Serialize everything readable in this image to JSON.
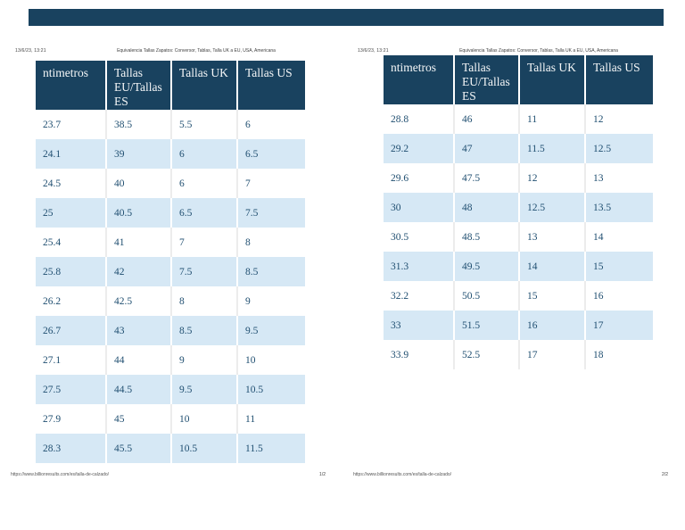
{
  "ui": {
    "top_bar_color": "#19425f",
    "accent_color": "#19425f",
    "stripe_color": "#d6e8f5",
    "body_text_color": "#1f4e70"
  },
  "pages": [
    {
      "datetime": "13/6/23, 13:21",
      "doc_title": "Equivalencia Tallas Zapatos: Conversor, Tablas, Talla UK a EU, USA, Americana",
      "footer_url": "https://www.billionresults.com/es/talla-de-calzado/",
      "page_number": "1/2",
      "table": {
        "headers": [
          "ntimetros",
          "Tallas\nEU/Tallas\nES",
          "Tallas UK",
          "Tallas US"
        ],
        "rows": [
          [
            "23.7",
            "38.5",
            "5.5",
            "6"
          ],
          [
            "24.1",
            "39",
            "6",
            "6.5"
          ],
          [
            "24.5",
            "40",
            "6",
            "7"
          ],
          [
            "25",
            "40.5",
            "6.5",
            "7.5"
          ],
          [
            "25.4",
            "41",
            "7",
            "8"
          ],
          [
            "25.8",
            "42",
            "7.5",
            "8.5"
          ],
          [
            "26.2",
            "42.5",
            "8",
            "9"
          ],
          [
            "26.7",
            "43",
            "8.5",
            "9.5"
          ],
          [
            "27.1",
            "44",
            "9",
            "10"
          ],
          [
            "27.5",
            "44.5",
            "9.5",
            "10.5"
          ],
          [
            "27.9",
            "45",
            "10",
            "11"
          ],
          [
            "28.3",
            "45.5",
            "10.5",
            "11.5"
          ]
        ]
      }
    },
    {
      "datetime": "13/6/23, 13:21",
      "doc_title": "Equivalencia Tallas Zapatos: Conversor, Tablas, Talla UK a EU, USA, Americana",
      "footer_url": "https://www.billionresults.com/es/talla-de-calzado/",
      "page_number": "2/2",
      "table": {
        "headers": [
          "ntimetros",
          "Tallas\nEU/Tallas\nES",
          "Tallas UK",
          "Tallas US"
        ],
        "rows": [
          [
            "28.8",
            "46",
            "11",
            "12"
          ],
          [
            "29.2",
            "47",
            "11.5",
            "12.5"
          ],
          [
            "29.6",
            "47.5",
            "12",
            "13"
          ],
          [
            "30",
            "48",
            "12.5",
            "13.5"
          ],
          [
            "30.5",
            "48.5",
            "13",
            "14"
          ],
          [
            "31.3",
            "49.5",
            "14",
            "15"
          ],
          [
            "32.2",
            "50.5",
            "15",
            "16"
          ],
          [
            "33",
            "51.5",
            "16",
            "17"
          ],
          [
            "33.9",
            "52.5",
            "17",
            "18"
          ]
        ]
      }
    }
  ]
}
